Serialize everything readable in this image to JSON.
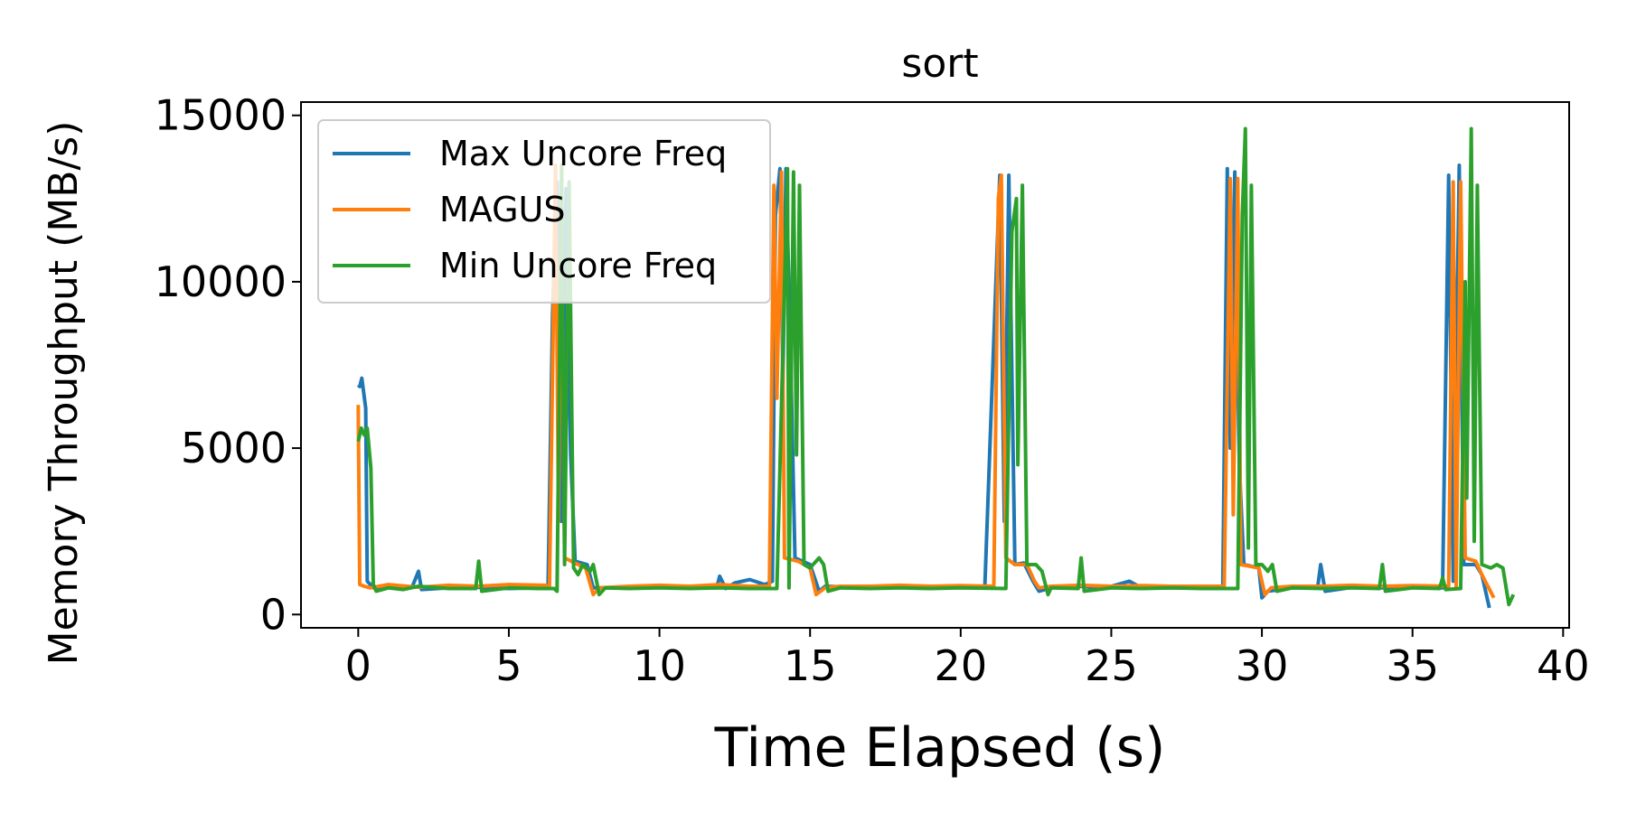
{
  "chart_data": {
    "type": "line",
    "title": "sort",
    "xlabel": "Time Elapsed (s)",
    "ylabel": "Memory Throughput (MB/s)",
    "xlim": [
      -1.9,
      40.2
    ],
    "ylim": [
      -400,
      15400
    ],
    "xticks": [
      0,
      5,
      10,
      15,
      20,
      25,
      30,
      35,
      40
    ],
    "xtick_labels": [
      "0",
      "5",
      "10",
      "15",
      "20",
      "25",
      "30",
      "35",
      "40"
    ],
    "yticks": [
      0,
      5000,
      10000,
      15000
    ],
    "ytick_labels": [
      "0",
      "5000",
      "10000",
      "15000"
    ],
    "grid": false,
    "legend_position": "top-left",
    "series": [
      {
        "name": "Max Uncore Freq",
        "color": "#1f77b4",
        "points": [
          [
            0.0,
            6900
          ],
          [
            0.05,
            6850
          ],
          [
            0.12,
            7100
          ],
          [
            0.25,
            6200
          ],
          [
            0.3,
            1000
          ],
          [
            0.5,
            800
          ],
          [
            1.0,
            820
          ],
          [
            1.5,
            780
          ],
          [
            1.8,
            850
          ],
          [
            2.0,
            1300
          ],
          [
            2.1,
            750
          ],
          [
            3.0,
            800
          ],
          [
            4.0,
            820
          ],
          [
            5.0,
            780
          ],
          [
            6.0,
            800
          ],
          [
            6.3,
            800
          ],
          [
            6.45,
            9000
          ],
          [
            6.6,
            13000
          ],
          [
            6.75,
            2800
          ],
          [
            6.9,
            12800
          ],
          [
            7.05,
            4800
          ],
          [
            7.2,
            1600
          ],
          [
            7.6,
            1500
          ],
          [
            7.8,
            800
          ],
          [
            9.0,
            800
          ],
          [
            10.5,
            820
          ],
          [
            11.9,
            800
          ],
          [
            12.0,
            1150
          ],
          [
            12.2,
            780
          ],
          [
            12.5,
            950
          ],
          [
            13.0,
            1050
          ],
          [
            13.5,
            900
          ],
          [
            13.75,
            1000
          ],
          [
            13.85,
            12000
          ],
          [
            14.0,
            13400
          ],
          [
            14.1,
            7000
          ],
          [
            14.2,
            13400
          ],
          [
            14.35,
            8000
          ],
          [
            14.5,
            1700
          ],
          [
            15.0,
            1500
          ],
          [
            15.3,
            700
          ],
          [
            15.5,
            850
          ],
          [
            17.0,
            800
          ],
          [
            19.0,
            820
          ],
          [
            20.8,
            800
          ],
          [
            21.3,
            13200
          ],
          [
            21.45,
            2800
          ],
          [
            21.6,
            13200
          ],
          [
            21.8,
            1500
          ],
          [
            22.1,
            1550
          ],
          [
            22.4,
            1000
          ],
          [
            22.6,
            700
          ],
          [
            23.0,
            800
          ],
          [
            24.0,
            850
          ],
          [
            24.5,
            800
          ],
          [
            25.0,
            850
          ],
          [
            25.6,
            1000
          ],
          [
            26.0,
            800
          ],
          [
            27.5,
            800
          ],
          [
            28.7,
            800
          ],
          [
            28.85,
            13400
          ],
          [
            28.95,
            5000
          ],
          [
            29.1,
            13300
          ],
          [
            29.25,
            4500
          ],
          [
            29.4,
            1500
          ],
          [
            29.9,
            1400
          ],
          [
            30.0,
            500
          ],
          [
            30.2,
            700
          ],
          [
            31.0,
            800
          ],
          [
            31.85,
            800
          ],
          [
            31.95,
            1500
          ],
          [
            32.1,
            700
          ],
          [
            33.0,
            820
          ],
          [
            34.0,
            800
          ],
          [
            35.0,
            820
          ],
          [
            36.0,
            800
          ],
          [
            36.2,
            13200
          ],
          [
            36.35,
            1000
          ],
          [
            36.55,
            13500
          ],
          [
            36.7,
            1500
          ],
          [
            37.1,
            1500
          ],
          [
            37.3,
            1200
          ],
          [
            37.55,
            200
          ]
        ]
      },
      {
        "name": "MAGUS",
        "color": "#ff7f0e",
        "points": [
          [
            0.0,
            6300
          ],
          [
            0.05,
            900
          ],
          [
            0.2,
            850
          ],
          [
            0.4,
            800
          ],
          [
            1.0,
            900
          ],
          [
            2.0,
            820
          ],
          [
            3.0,
            880
          ],
          [
            4.0,
            850
          ],
          [
            5.0,
            900
          ],
          [
            6.2,
            880
          ],
          [
            6.35,
            850
          ],
          [
            6.55,
            13500
          ],
          [
            6.65,
            2800
          ],
          [
            6.75,
            13000
          ],
          [
            6.85,
            1700
          ],
          [
            7.3,
            1500
          ],
          [
            7.55,
            1400
          ],
          [
            7.8,
            600
          ],
          [
            8.0,
            800
          ],
          [
            9.0,
            850
          ],
          [
            10.0,
            880
          ],
          [
            11.0,
            850
          ],
          [
            12.0,
            900
          ],
          [
            13.0,
            850
          ],
          [
            13.65,
            850
          ],
          [
            13.8,
            12900
          ],
          [
            13.9,
            6500
          ],
          [
            14.05,
            13300
          ],
          [
            14.15,
            1700
          ],
          [
            14.6,
            1600
          ],
          [
            15.0,
            1400
          ],
          [
            15.2,
            600
          ],
          [
            15.5,
            800
          ],
          [
            16.0,
            850
          ],
          [
            17.0,
            850
          ],
          [
            18.0,
            880
          ],
          [
            19.0,
            850
          ],
          [
            20.0,
            870
          ],
          [
            21.1,
            850
          ],
          [
            21.25,
            12500
          ],
          [
            21.35,
            13200
          ],
          [
            21.5,
            1700
          ],
          [
            21.8,
            1500
          ],
          [
            22.2,
            1500
          ],
          [
            22.45,
            1000
          ],
          [
            22.6,
            800
          ],
          [
            23.0,
            850
          ],
          [
            24.0,
            880
          ],
          [
            25.0,
            850
          ],
          [
            26.0,
            870
          ],
          [
            27.0,
            850
          ],
          [
            28.0,
            850
          ],
          [
            28.75,
            850
          ],
          [
            28.95,
            13100
          ],
          [
            29.05,
            3000
          ],
          [
            29.2,
            13100
          ],
          [
            29.3,
            1500
          ],
          [
            29.9,
            1400
          ],
          [
            30.1,
            600
          ],
          [
            30.3,
            800
          ],
          [
            31.0,
            850
          ],
          [
            32.0,
            850
          ],
          [
            33.0,
            880
          ],
          [
            34.0,
            850
          ],
          [
            35.0,
            870
          ],
          [
            36.2,
            850
          ],
          [
            36.35,
            13000
          ],
          [
            36.45,
            800
          ],
          [
            36.6,
            13000
          ],
          [
            36.75,
            1700
          ],
          [
            37.1,
            1600
          ],
          [
            37.3,
            1200
          ],
          [
            37.7,
            500
          ]
        ]
      },
      {
        "name": "Min Uncore Freq",
        "color": "#2ca02c",
        "points": [
          [
            0.0,
            5200
          ],
          [
            0.1,
            5600
          ],
          [
            0.2,
            5400
          ],
          [
            0.3,
            5600
          ],
          [
            0.42,
            4400
          ],
          [
            0.5,
            900
          ],
          [
            0.6,
            700
          ],
          [
            1.0,
            800
          ],
          [
            1.5,
            750
          ],
          [
            2.0,
            850
          ],
          [
            3.0,
            780
          ],
          [
            3.9,
            780
          ],
          [
            4.0,
            1600
          ],
          [
            4.1,
            700
          ],
          [
            5.0,
            800
          ],
          [
            6.0,
            780
          ],
          [
            6.5,
            780
          ],
          [
            6.6,
            700
          ],
          [
            6.75,
            13500
          ],
          [
            6.85,
            1500
          ],
          [
            7.0,
            13000
          ],
          [
            7.15,
            1400
          ],
          [
            7.3,
            1200
          ],
          [
            7.45,
            1500
          ],
          [
            7.7,
            1300
          ],
          [
            7.8,
            1500
          ],
          [
            8.0,
            600
          ],
          [
            8.2,
            800
          ],
          [
            9.0,
            780
          ],
          [
            10.0,
            800
          ],
          [
            11.0,
            780
          ],
          [
            12.0,
            800
          ],
          [
            13.0,
            780
          ],
          [
            13.9,
            780
          ],
          [
            14.25,
            13400
          ],
          [
            14.3,
            800
          ],
          [
            14.45,
            13300
          ],
          [
            14.55,
            4800
          ],
          [
            14.65,
            12900
          ],
          [
            14.8,
            1500
          ],
          [
            15.0,
            1400
          ],
          [
            15.3,
            1700
          ],
          [
            15.45,
            1500
          ],
          [
            15.6,
            700
          ],
          [
            16.0,
            800
          ],
          [
            17.0,
            780
          ],
          [
            18.0,
            800
          ],
          [
            19.0,
            780
          ],
          [
            20.0,
            800
          ],
          [
            21.5,
            780
          ],
          [
            21.7,
            11500
          ],
          [
            21.85,
            12500
          ],
          [
            21.9,
            4500
          ],
          [
            22.05,
            12900
          ],
          [
            22.2,
            1500
          ],
          [
            22.5,
            1500
          ],
          [
            22.7,
            1300
          ],
          [
            22.9,
            600
          ],
          [
            23.0,
            800
          ],
          [
            23.9,
            780
          ],
          [
            24.0,
            1700
          ],
          [
            24.1,
            700
          ],
          [
            25.0,
            800
          ],
          [
            26.0,
            780
          ],
          [
            27.0,
            800
          ],
          [
            28.0,
            780
          ],
          [
            29.2,
            780
          ],
          [
            29.35,
            12000
          ],
          [
            29.45,
            14600
          ],
          [
            29.55,
            2000
          ],
          [
            29.65,
            12900
          ],
          [
            29.8,
            1500
          ],
          [
            30.0,
            1500
          ],
          [
            30.2,
            1300
          ],
          [
            30.35,
            1500
          ],
          [
            30.5,
            700
          ],
          [
            31.0,
            800
          ],
          [
            32.0,
            780
          ],
          [
            33.0,
            800
          ],
          [
            33.9,
            780
          ],
          [
            34.0,
            1500
          ],
          [
            34.1,
            700
          ],
          [
            35.0,
            800
          ],
          [
            35.9,
            780
          ],
          [
            36.0,
            1100
          ],
          [
            36.1,
            750
          ],
          [
            36.6,
            780
          ],
          [
            36.75,
            10000
          ],
          [
            36.8,
            3500
          ],
          [
            36.95,
            14600
          ],
          [
            37.05,
            2200
          ],
          [
            37.15,
            12900
          ],
          [
            37.3,
            1500
          ],
          [
            37.6,
            1400
          ],
          [
            37.8,
            1500
          ],
          [
            38.0,
            1400
          ],
          [
            38.2,
            300
          ],
          [
            38.35,
            600
          ]
        ]
      }
    ]
  }
}
